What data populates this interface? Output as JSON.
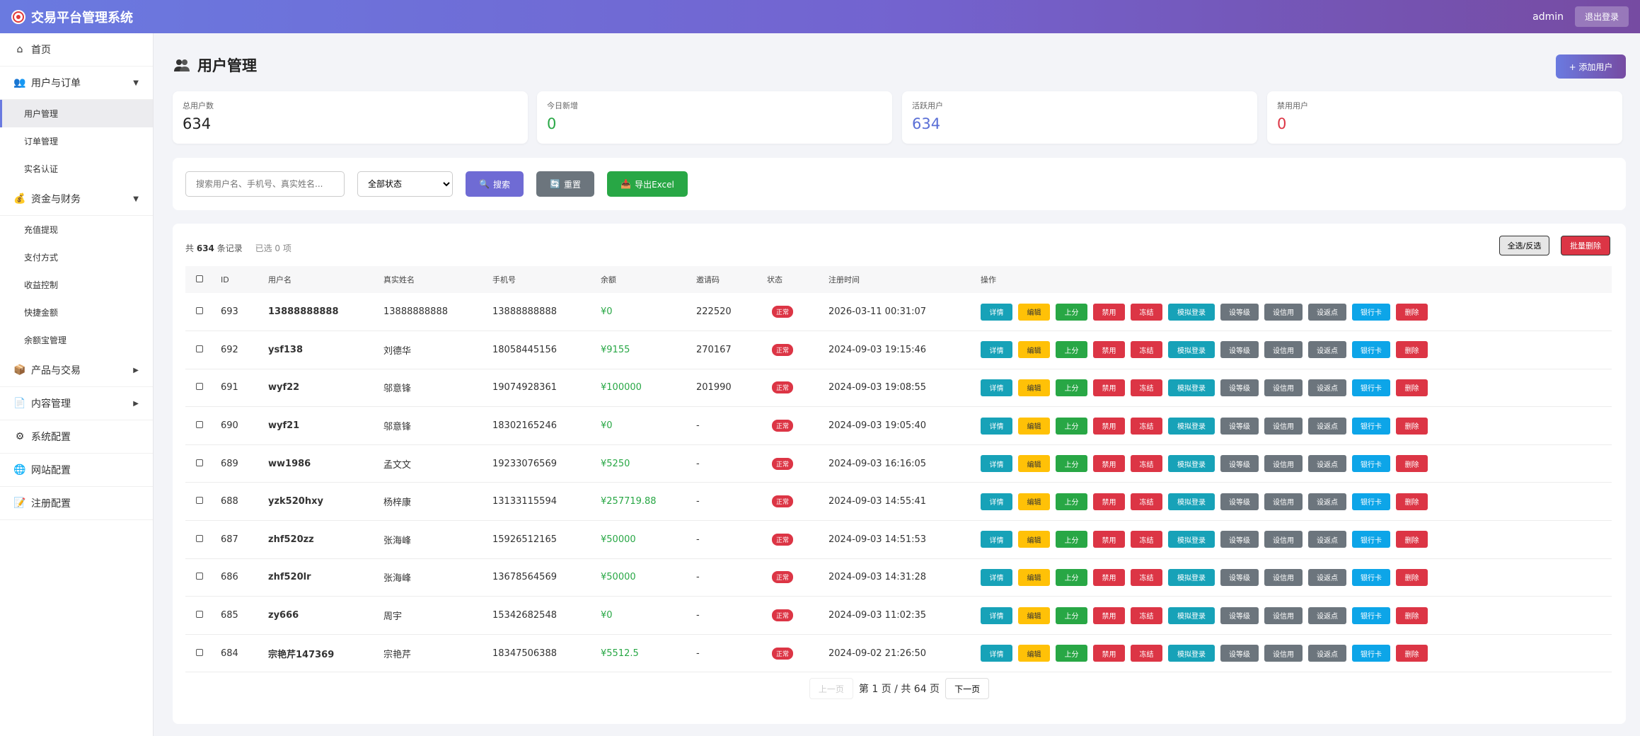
{
  "header": {
    "title": "交易平台管理系统",
    "admin": "admin",
    "logout": "退出登录"
  },
  "sidebar": [
    {
      "label": "首页",
      "icon": "home-icon",
      "caret": ""
    },
    {
      "label": "用户与订单",
      "icon": "users-icon",
      "caret": "▼"
    },
    {
      "label": "用户管理",
      "sub": true,
      "active": true
    },
    {
      "label": "订单管理",
      "sub": true
    },
    {
      "label": "实名认证",
      "sub": true
    },
    {
      "label": "资金与财务",
      "icon": "money-bag-icon",
      "caret": "▼"
    },
    {
      "label": "充值提现",
      "sub": true
    },
    {
      "label": "支付方式",
      "sub": true
    },
    {
      "label": "收益控制",
      "sub": true
    },
    {
      "label": "快捷金额",
      "sub": true
    },
    {
      "label": "余额宝管理",
      "sub": true
    },
    {
      "label": "产品与交易",
      "icon": "box-icon",
      "caret": "▶"
    },
    {
      "label": "内容管理",
      "icon": "document-icon",
      "caret": "▶"
    },
    {
      "label": "系统配置",
      "icon": "gear-icon",
      "caret": ""
    },
    {
      "label": "网站配置",
      "icon": "globe-icon",
      "caret": ""
    },
    {
      "label": "注册配置",
      "icon": "note-icon",
      "caret": ""
    }
  ],
  "page": {
    "title": "用户管理",
    "add_user": "+ 添加用户"
  },
  "stats": [
    {
      "label": "总用户数",
      "value": "634",
      "color": "#222222"
    },
    {
      "label": "今日新增",
      "value": "0",
      "color": "#28a745"
    },
    {
      "label": "活跃用户",
      "value": "634",
      "color": "#5a6fd6"
    },
    {
      "label": "禁用用户",
      "value": "0",
      "color": "#dc3545"
    }
  ],
  "filters": {
    "search_placeholder": "搜索用户名、手机号、真实姓名...",
    "status_value": "全部状态",
    "search_btn": "搜索",
    "reset_btn": "重置",
    "export_btn": "导出Excel"
  },
  "table": {
    "summary_prefix": "共",
    "total": "634",
    "summary_suffix": "条记录",
    "selected": "已选 0 项",
    "select_all": "全选/反选",
    "bulk_delete": "批量删除",
    "columns": [
      "",
      "ID",
      "用户名",
      "真实姓名",
      "手机号",
      "余额",
      "邀请码",
      "状态",
      "注册时间",
      "操作"
    ],
    "actions": [
      {
        "label": "详情",
        "color": "#17a2b8"
      },
      {
        "label": "编辑",
        "color": "#ffc107",
        "text": "#333333"
      },
      {
        "label": "上分",
        "color": "#28a745"
      },
      {
        "label": "禁用",
        "color": "#dc3545"
      },
      {
        "label": "冻结",
        "color": "#dc3545"
      },
      {
        "label": "模拟登录",
        "color": "#17a2b8"
      },
      {
        "label": "设等级",
        "color": "#6c757d"
      },
      {
        "label": "设信用",
        "color": "#6c757d"
      },
      {
        "label": "设返点",
        "color": "#6c757d"
      },
      {
        "label": "银行卡",
        "color": "#0da5e8"
      },
      {
        "label": "删除",
        "color": "#dc3545"
      }
    ],
    "rows": [
      {
        "id": "693",
        "username": "13888888888",
        "realname": "13888888888",
        "phone": "13888888888",
        "balance": "¥0",
        "invite": "222520",
        "status": "正常",
        "time": "2026-03-11 00:31:07"
      },
      {
        "id": "692",
        "username": "ysf138",
        "realname": "刘德华",
        "phone": "18058445156",
        "balance": "¥9155",
        "invite": "270167",
        "status": "正常",
        "time": "2024-09-03 19:15:46"
      },
      {
        "id": "691",
        "username": "wyf22",
        "realname": "邬意锋",
        "phone": "19074928361",
        "balance": "¥100000",
        "invite": "201990",
        "status": "正常",
        "time": "2024-09-03 19:08:55"
      },
      {
        "id": "690",
        "username": "wyf21",
        "realname": "邬意锋",
        "phone": "18302165246",
        "balance": "¥0",
        "invite": "-",
        "status": "正常",
        "time": "2024-09-03 19:05:40"
      },
      {
        "id": "689",
        "username": "ww1986",
        "realname": "孟文文",
        "phone": "19233076569",
        "balance": "¥5250",
        "invite": "-",
        "status": "正常",
        "time": "2024-09-03 16:16:05"
      },
      {
        "id": "688",
        "username": "yzk520hxy",
        "realname": "杨梓康",
        "phone": "13133115594",
        "balance": "¥257719.88",
        "invite": "-",
        "status": "正常",
        "time": "2024-09-03 14:55:41"
      },
      {
        "id": "687",
        "username": "zhf520zz",
        "realname": "张海峰",
        "phone": "15926512165",
        "balance": "¥50000",
        "invite": "-",
        "status": "正常",
        "time": "2024-09-03 14:51:53"
      },
      {
        "id": "686",
        "username": "zhf520lr",
        "realname": "张海峰",
        "phone": "13678564569",
        "balance": "¥50000",
        "invite": "-",
        "status": "正常",
        "time": "2024-09-03 14:31:28"
      },
      {
        "id": "685",
        "username": "zy666",
        "realname": "周宇",
        "phone": "15342682548",
        "balance": "¥0",
        "invite": "-",
        "status": "正常",
        "time": "2024-09-03 11:02:35"
      },
      {
        "id": "684",
        "username": "宗艳芹147369",
        "realname": "宗艳芹",
        "phone": "18347506388",
        "balance": "¥5512.5",
        "invite": "-",
        "status": "正常",
        "time": "2024-09-02 21:26:50"
      }
    ]
  },
  "pagination": {
    "prev": "上一页",
    "info": "第 1 页 / 共 64 页",
    "next": "下一页"
  }
}
